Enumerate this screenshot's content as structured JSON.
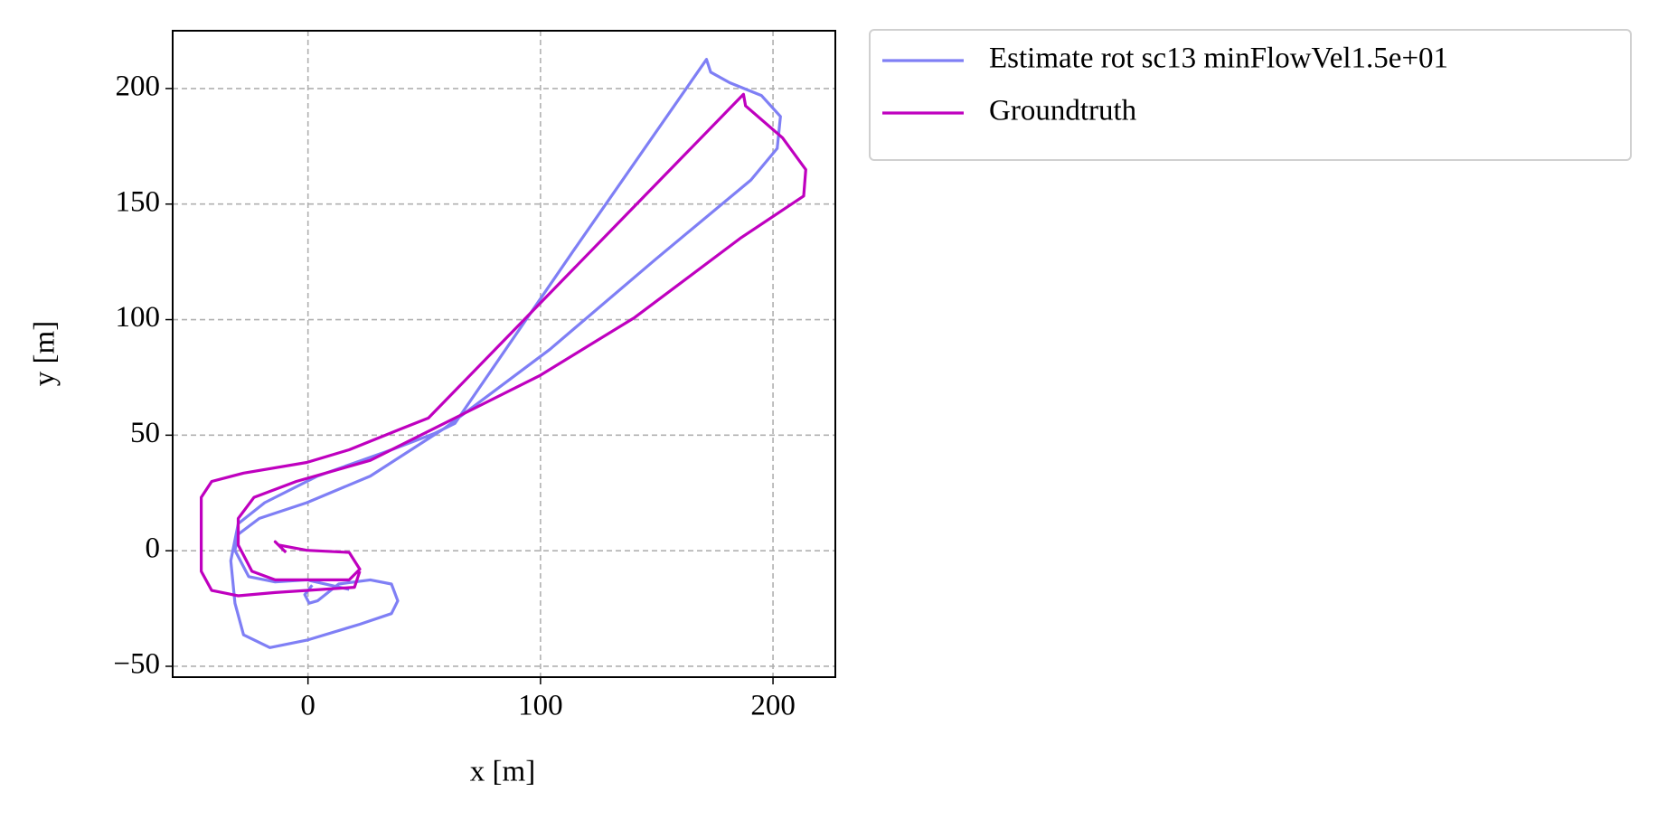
{
  "chart_data": {
    "type": "line",
    "xlabel": "x [m]",
    "ylabel": "y [m]",
    "xlim": [
      -58.2,
      226.8
    ],
    "ylim": [
      -54.7,
      225
    ],
    "xticks": [
      0,
      100,
      200
    ],
    "yticks": [
      {
        "value": -50,
        "label": "−50"
      },
      0,
      50,
      100,
      150,
      200
    ],
    "grid": true,
    "legend": "outside-upper-right",
    "series": [
      {
        "name": "Estimate rot sc13 minFlowVel1.5e+01",
        "color": "#7f7ff5",
        "x": [
          17.7,
          -0.5,
          -14.1,
          -25.5,
          -31.4,
          -30.0,
          -20.9,
          -0.5,
          26.8,
          58.6,
          104.1,
          149.5,
          190.5,
          201.8,
          203.2,
          195.0,
          181.4,
          173.2,
          171.4,
          113.2,
          63.2,
          54.1,
          35.9,
          4.1,
          -18.6,
          -30.0,
          -33.2,
          -31.4,
          -27.7,
          -16.4,
          -0.5,
          22.3,
          35.9,
          38.6,
          35.9,
          26.8,
          13.2,
          4.1,
          0.5,
          -1.4,
          1.8
        ],
        "values": [
          -16.7,
          -12.6,
          -13.5,
          -11.2,
          0.2,
          7.1,
          14.0,
          20.8,
          32.3,
          52.9,
          87.2,
          126.1,
          160.4,
          174.1,
          187.9,
          197.0,
          202.5,
          207.1,
          212.6,
          128.4,
          55.1,
          50.6,
          43.7,
          32.3,
          20.8,
          11.7,
          -4.3,
          -22.7,
          -36.4,
          -41.9,
          -38.7,
          -31.8,
          -27.2,
          -21.7,
          -14.4,
          -12.6,
          -14.4,
          -21.7,
          -22.7,
          -19.0,
          -14.9
        ]
      },
      {
        "name": "Groundtruth",
        "color": "#bf00bf",
        "x": [
          -9.5,
          -14.1,
          -12.7,
          -0.5,
          17.7,
          22.3,
          17.7,
          -14.1,
          -24.1,
          -30.0,
          -30.0,
          -23.2,
          -5.0,
          26.8,
          58.6,
          99.5,
          140.5,
          185.9,
          213.2,
          214.1,
          204.1,
          188.2,
          187.3,
          51.8,
          40.5,
          17.7,
          -0.5,
          -27.7,
          -41.4,
          -45.9,
          -45.9,
          -41.4,
          -30.0,
          -14.1,
          20.0,
          22.3
        ],
        "values": [
          -0.7,
          3.9,
          2.5,
          0.2,
          -0.7,
          -8.0,
          -12.6,
          -12.6,
          -8.9,
          2.5,
          14.0,
          23.1,
          30.0,
          39.1,
          55.1,
          75.7,
          100.9,
          135.2,
          153.5,
          164.9,
          178.7,
          192.5,
          197.5,
          57.4,
          52.9,
          43.7,
          38.2,
          33.6,
          30.0,
          23.1,
          -8.9,
          -17.2,
          -19.5,
          -18.1,
          -15.8,
          -8.9
        ]
      }
    ]
  }
}
